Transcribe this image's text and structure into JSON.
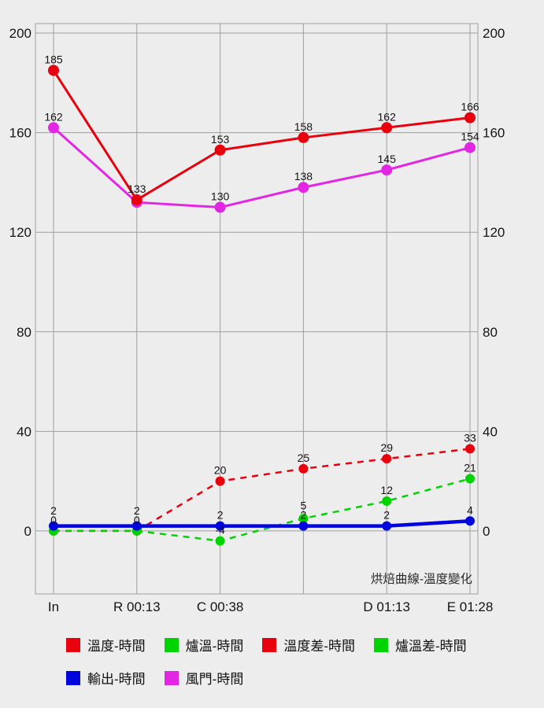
{
  "colors": {
    "background": "#ededed",
    "grid": "#9e9e9e",
    "axis_text": "#141414",
    "point_label": "#141414",
    "title_text": "#2a2a2a",
    "red": "#e8000d",
    "green": "#00d400",
    "blue": "#0004dd",
    "magenta": "#e326e3"
  },
  "chart_data": {
    "type": "line",
    "title": "烘焙曲線-溫度變化",
    "x_tick_labels": [
      "In",
      "R 00:13",
      "C 00:38",
      "",
      "D 01:13",
      "E 01:28"
    ],
    "y_ticks": [
      0,
      40,
      80,
      120,
      160,
      200
    ],
    "y_axis_range": [
      -25.3,
      203.8
    ],
    "grid": true,
    "legend_position": "bottom",
    "series": [
      {
        "name": "溫度差-時間",
        "color": "#e8000d",
        "dash": true,
        "width": 2.5,
        "marker": 6,
        "values": [
          0,
          0,
          20,
          25,
          29,
          33
        ],
        "labels": [
          "0",
          "0",
          "20",
          "25",
          "29",
          "33"
        ]
      },
      {
        "name": "爐溫差-時間",
        "color": "#00d400",
        "dash": true,
        "width": 2.5,
        "marker": 6,
        "values": [
          0,
          0,
          -4,
          5,
          12,
          21
        ],
        "labels": [
          "",
          "",
          "-4",
          "5",
          "12",
          "21"
        ]
      },
      {
        "name": "風門-時間",
        "color": "#e326e3",
        "dash": false,
        "width": 3,
        "marker": 7,
        "values": [
          162,
          132,
          130,
          138,
          145,
          154
        ],
        "labels": [
          "162",
          "",
          "130",
          "138",
          "145",
          "154"
        ]
      },
      {
        "name": "溫度-時間",
        "color": "#e8000d",
        "dash": false,
        "width": 3,
        "marker": 7,
        "values": [
          185,
          133,
          153,
          158,
          162,
          166
        ],
        "labels": [
          "185",
          "133",
          "153",
          "158",
          "162",
          "166"
        ]
      },
      {
        "name": "輸出-時間",
        "color": "#0004dd",
        "dash": false,
        "width": 4.5,
        "marker": 6,
        "values": [
          2,
          2,
          2,
          2,
          2,
          4
        ],
        "labels": [
          "2",
          "2",
          "2",
          "2",
          "2",
          "4"
        ]
      }
    ]
  },
  "legend": {
    "rows": [
      [
        {
          "label": "溫度-時間",
          "color": "#e8000d"
        },
        {
          "label": "爐溫-時間",
          "color": "#00d400"
        },
        {
          "label": "溫度差-時間",
          "color": "#e8000d"
        },
        {
          "label": "爐溫差-時間",
          "color": "#00d400"
        }
      ],
      [
        {
          "label": "輸出-時間",
          "color": "#0004dd"
        },
        {
          "label": "風門-時間",
          "color": "#e326e3"
        }
      ]
    ]
  }
}
